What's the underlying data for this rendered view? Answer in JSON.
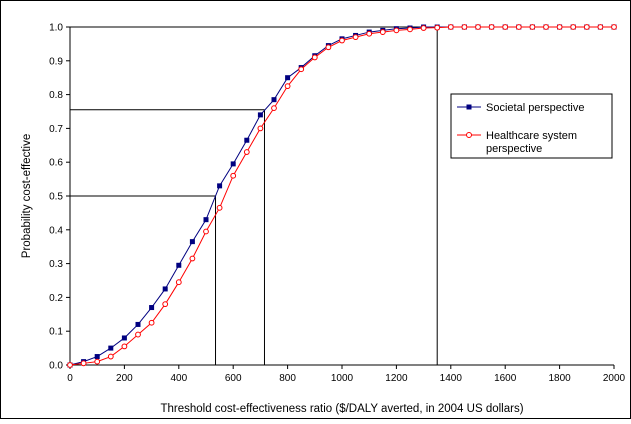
{
  "chart_data": {
    "type": "line",
    "title": "",
    "xlabel": "Threshold cost-effectiveness ratio ($/DALY averted, in 2004 US dollars)",
    "ylabel": "Probability cost-effective",
    "xlim": [
      0,
      2000
    ],
    "ylim": [
      0,
      1.0
    ],
    "x_ticks": [
      "0",
      "200",
      "400",
      "600",
      "800",
      "1000",
      "1200",
      "1400",
      "1600",
      "1800",
      "2000"
    ],
    "y_ticks": [
      "0.0",
      "0.1",
      "0.2",
      "0.3",
      "0.4",
      "0.5",
      "0.6",
      "0.7",
      "0.8",
      "0.9",
      "1.0"
    ],
    "grid": false,
    "legend_position": "right",
    "x": [
      0,
      50,
      100,
      150,
      200,
      250,
      300,
      350,
      400,
      450,
      500,
      550,
      600,
      650,
      700,
      750,
      800,
      850,
      900,
      950,
      1000,
      1050,
      1100,
      1150,
      1200,
      1250,
      1300,
      1350,
      1400,
      1450,
      1500,
      1550,
      1600,
      1650,
      1700,
      1750,
      1800,
      1850,
      1900,
      1950,
      2000
    ],
    "series": [
      {
        "name": "Societal perspective",
        "color": "#000080",
        "marker": "filled-square",
        "values": [
          0.0,
          0.01,
          0.025,
          0.05,
          0.08,
          0.12,
          0.17,
          0.225,
          0.295,
          0.365,
          0.43,
          0.53,
          0.595,
          0.665,
          0.74,
          0.785,
          0.85,
          0.88,
          0.915,
          0.945,
          0.965,
          0.975,
          0.985,
          0.99,
          0.995,
          0.997,
          1.0,
          1.0,
          1.0,
          1.0,
          1.0,
          1.0,
          1.0,
          1.0,
          1.0,
          1.0,
          1.0,
          1.0,
          1.0,
          1.0,
          1.0
        ]
      },
      {
        "name": "Healthcare system perspective",
        "color": "#ff0000",
        "marker": "open-circle",
        "values": [
          0.0,
          0.005,
          0.01,
          0.025,
          0.055,
          0.09,
          0.125,
          0.18,
          0.245,
          0.315,
          0.395,
          0.465,
          0.56,
          0.63,
          0.7,
          0.76,
          0.825,
          0.875,
          0.91,
          0.94,
          0.96,
          0.97,
          0.98,
          0.985,
          0.99,
          0.993,
          0.997,
          0.998,
          1.0,
          1.0,
          1.0,
          1.0,
          1.0,
          1.0,
          1.0,
          1.0,
          1.0,
          1.0,
          1.0,
          1.0,
          1.0
        ]
      }
    ],
    "reference_lines": [
      {
        "x": 535,
        "y": 0.5
      },
      {
        "x": 715,
        "y": 0.755
      },
      {
        "x": 1350,
        "y": 1.0
      }
    ]
  }
}
